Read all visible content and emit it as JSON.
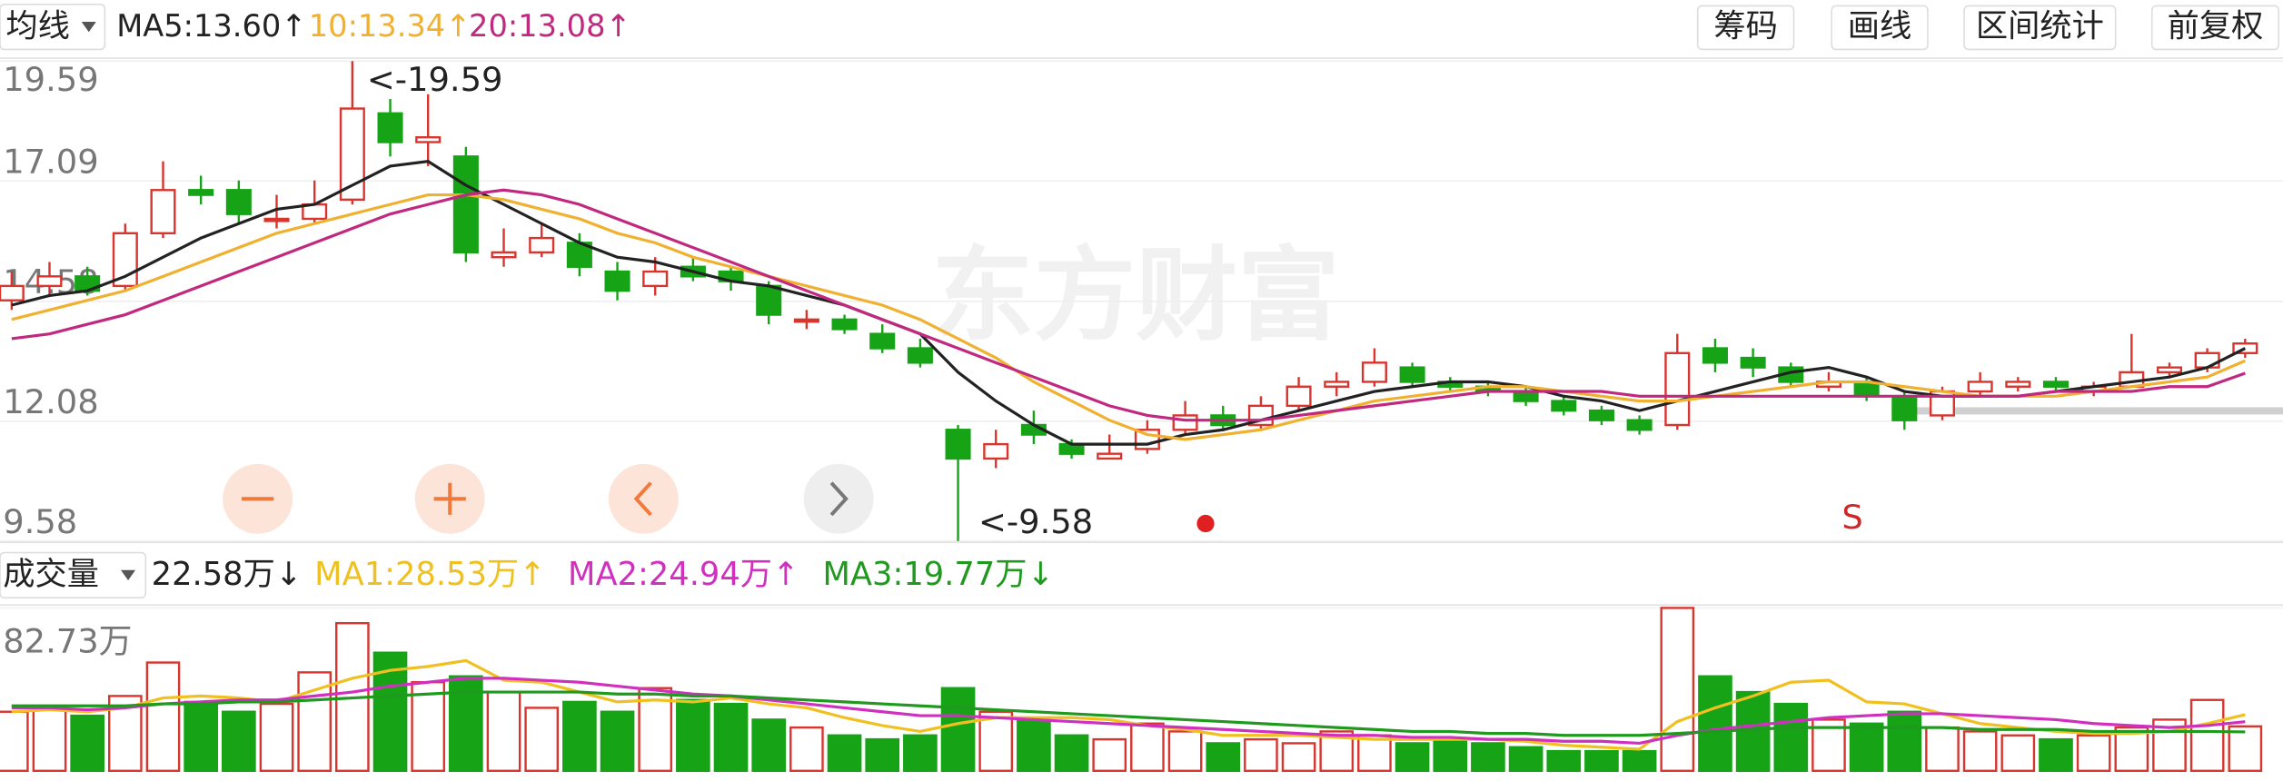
{
  "toolbar": {
    "indicator": "均线",
    "buttons": [
      "筹码",
      "画线",
      "区间统计",
      "前复权"
    ]
  },
  "watermark": "东方财富",
  "chart_data": [
    {
      "type": "candlestick",
      "up_color": "#d8352f",
      "down_color": "#16a316",
      "ylim": [
        9.58,
        19.59
      ],
      "yticks": [
        19.59,
        17.09,
        14.58,
        12.08,
        9.58
      ],
      "grid": true,
      "open": [
        14.6,
        14.9,
        15.1,
        14.9,
        16.0,
        16.9,
        16.9,
        16.3,
        16.3,
        16.7,
        18.5,
        17.9,
        17.6,
        15.5,
        15.6,
        15.8,
        15.2,
        14.9,
        15.3,
        15.2,
        14.9,
        14.2,
        14.2,
        13.9,
        13.6,
        11.9,
        11.3,
        12.0,
        11.6,
        11.3,
        11.5,
        11.9,
        12.2,
        12.0,
        12.4,
        12.8,
        12.9,
        13.2,
        12.9,
        12.8,
        12.7,
        12.5,
        12.3,
        12.1,
        12.0,
        13.6,
        13.4,
        13.2,
        12.8,
        12.9,
        12.6,
        12.2,
        12.7,
        12.8,
        12.9,
        12.7,
        12.8,
        13.1,
        13.2,
        13.5
      ],
      "high": [
        15.2,
        15.4,
        15.3,
        16.2,
        17.5,
        17.2,
        17.1,
        16.8,
        17.1,
        19.59,
        18.8,
        18.9,
        17.8,
        16.1,
        16.2,
        16.0,
        15.4,
        15.5,
        15.5,
        15.3,
        15.0,
        14.4,
        14.3,
        14.1,
        13.8,
        12.0,
        11.9,
        12.3,
        11.7,
        11.8,
        12.1,
        12.5,
        12.4,
        12.6,
        13.0,
        13.1,
        13.6,
        13.3,
        13.0,
        12.9,
        12.8,
        12.6,
        12.4,
        12.2,
        13.9,
        13.8,
        13.6,
        13.3,
        13.1,
        13.0,
        12.7,
        12.8,
        13.1,
        13.0,
        13.0,
        12.9,
        13.9,
        13.3,
        13.6,
        13.8
      ],
      "low": [
        14.4,
        14.7,
        14.7,
        14.8,
        15.9,
        16.6,
        16.2,
        16.1,
        16.2,
        16.6,
        17.6,
        17.4,
        15.4,
        15.3,
        15.5,
        15.1,
        14.6,
        14.7,
        15.0,
        14.8,
        14.1,
        14.0,
        13.9,
        13.5,
        13.2,
        9.58,
        11.1,
        11.6,
        11.3,
        11.3,
        11.4,
        11.8,
        11.9,
        11.9,
        12.3,
        12.6,
        12.8,
        12.8,
        12.7,
        12.6,
        12.4,
        12.2,
        12.0,
        11.8,
        11.9,
        13.1,
        13.0,
        12.8,
        12.7,
        12.5,
        11.9,
        12.1,
        12.6,
        12.7,
        12.7,
        12.6,
        12.8,
        13.0,
        13.1,
        13.4
      ],
      "close": [
        14.9,
        15.1,
        14.8,
        16.0,
        16.9,
        16.8,
        16.4,
        16.3,
        16.6,
        18.6,
        17.9,
        18.0,
        15.6,
        15.6,
        15.9,
        15.3,
        14.8,
        15.2,
        15.1,
        15.0,
        14.3,
        14.2,
        14.0,
        13.6,
        13.3,
        11.3,
        11.6,
        11.8,
        11.4,
        11.4,
        11.9,
        12.2,
        12.0,
        12.4,
        12.8,
        12.9,
        13.3,
        12.9,
        12.8,
        12.7,
        12.5,
        12.3,
        12.1,
        11.9,
        13.5,
        13.3,
        13.2,
        12.9,
        12.9,
        12.6,
        12.1,
        12.7,
        12.9,
        12.9,
        12.8,
        12.8,
        13.1,
        13.2,
        13.5,
        13.7
      ],
      "series": [
        {
          "name": "MA5:13.60↑",
          "color": "#222222",
          "values": [
            14.5,
            14.7,
            14.8,
            15.1,
            15.5,
            15.9,
            16.2,
            16.5,
            16.6,
            17.0,
            17.4,
            17.5,
            17.0,
            16.6,
            16.2,
            15.8,
            15.5,
            15.4,
            15.2,
            15.0,
            14.9,
            14.7,
            14.5,
            14.2,
            13.9,
            13.1,
            12.5,
            12.0,
            11.6,
            11.6,
            11.6,
            11.8,
            11.9,
            12.1,
            12.3,
            12.5,
            12.7,
            12.8,
            12.9,
            12.9,
            12.8,
            12.6,
            12.5,
            12.3,
            12.5,
            12.7,
            12.9,
            13.1,
            13.2,
            13.0,
            12.7,
            12.6,
            12.6,
            12.6,
            12.7,
            12.8,
            12.9,
            13.0,
            13.2,
            13.6
          ]
        },
        {
          "name": "10:13.34↑",
          "color": "#f0b030",
          "values": [
            14.2,
            14.4,
            14.6,
            14.8,
            15.1,
            15.4,
            15.7,
            16.0,
            16.2,
            16.4,
            16.6,
            16.8,
            16.8,
            16.7,
            16.5,
            16.3,
            16.0,
            15.8,
            15.5,
            15.3,
            15.1,
            14.9,
            14.7,
            14.5,
            14.2,
            13.8,
            13.4,
            12.9,
            12.5,
            12.1,
            11.8,
            11.7,
            11.8,
            11.9,
            12.1,
            12.3,
            12.5,
            12.6,
            12.7,
            12.8,
            12.8,
            12.7,
            12.6,
            12.5,
            12.5,
            12.6,
            12.7,
            12.8,
            12.9,
            12.9,
            12.8,
            12.7,
            12.6,
            12.6,
            12.6,
            12.7,
            12.8,
            12.9,
            13.0,
            13.34
          ]
        },
        {
          "name": "20:13.08↑",
          "color": "#c0297f",
          "values": [
            13.8,
            13.9,
            14.1,
            14.3,
            14.6,
            14.9,
            15.2,
            15.5,
            15.8,
            16.1,
            16.4,
            16.6,
            16.8,
            16.9,
            16.8,
            16.6,
            16.3,
            16.0,
            15.7,
            15.4,
            15.1,
            14.8,
            14.5,
            14.2,
            13.9,
            13.6,
            13.3,
            13.0,
            12.7,
            12.4,
            12.2,
            12.1,
            12.1,
            12.1,
            12.2,
            12.3,
            12.4,
            12.5,
            12.6,
            12.7,
            12.7,
            12.7,
            12.7,
            12.6,
            12.6,
            12.6,
            12.6,
            12.6,
            12.6,
            12.6,
            12.6,
            12.6,
            12.6,
            12.6,
            12.7,
            12.7,
            12.7,
            12.8,
            12.8,
            13.08
          ]
        }
      ],
      "annotations": [
        "<-19.59",
        "<-9.58",
        "S"
      ]
    },
    {
      "type": "bar",
      "title": "成交量",
      "current_label": "22.58万↓",
      "ylim": [
        0,
        82.73
      ],
      "yticks": [
        {
          "value": 82.73,
          "label": "82.73万"
        }
      ],
      "values": [
        30,
        32,
        28,
        38,
        55,
        35,
        30,
        34,
        50,
        75,
        60,
        45,
        48,
        40,
        32,
        35,
        30,
        42,
        36,
        34,
        26,
        22,
        18,
        16,
        18,
        42,
        30,
        26,
        18,
        16,
        24,
        20,
        14,
        16,
        14,
        20,
        18,
        14,
        16,
        14,
        12,
        10,
        10,
        10,
        82.73,
        48,
        40,
        34,
        26,
        24,
        30,
        22,
        20,
        18,
        16,
        18,
        22,
        26,
        36,
        22.58
      ],
      "series": [
        {
          "name": "MA1:28.53万↑",
          "color": "#f0c020",
          "values": [
            30,
            31,
            30,
            32,
            37,
            38,
            37,
            35,
            41,
            47,
            51,
            53,
            56,
            46,
            45,
            40,
            35,
            36,
            35,
            37,
            34,
            32,
            27,
            23,
            20,
            24,
            27,
            27,
            27,
            26,
            23,
            21,
            18,
            18,
            18,
            17,
            16,
            16,
            16,
            16,
            15,
            13,
            12,
            11,
            25,
            32,
            38,
            45,
            46,
            35,
            34,
            29,
            24,
            22,
            20,
            19,
            19,
            20,
            24,
            28.53
          ]
        },
        {
          "name": "MA2:24.94万↑",
          "color": "#d030c0",
          "values": [
            32,
            32,
            31,
            32,
            34,
            35,
            36,
            36,
            38,
            40,
            43,
            45,
            47,
            47,
            46,
            45,
            43,
            41,
            39,
            38,
            36,
            34,
            32,
            30,
            28,
            28,
            27,
            26,
            25,
            24,
            23,
            22,
            21,
            20,
            19,
            18,
            18,
            17,
            17,
            16,
            16,
            15,
            15,
            14,
            18,
            21,
            23,
            25,
            27,
            28,
            29,
            29,
            28,
            27,
            26,
            24,
            23,
            22,
            23,
            24.94
          ]
        },
        {
          "name": "MA3:19.77万↓",
          "color": "#1f9a1f",
          "values": [
            33,
            33,
            33,
            33,
            34,
            34,
            35,
            35,
            36,
            37,
            38,
            39,
            40,
            40,
            40,
            40,
            39,
            39,
            38,
            38,
            37,
            36,
            35,
            34,
            33,
            32,
            31,
            30,
            29,
            28,
            27,
            26,
            25,
            24,
            23,
            22,
            21,
            20,
            20,
            19,
            19,
            18,
            18,
            18,
            19,
            20,
            21,
            22,
            22,
            22,
            22,
            22,
            21,
            21,
            21,
            20,
            20,
            20,
            20,
            19.77
          ]
        }
      ]
    }
  ]
}
